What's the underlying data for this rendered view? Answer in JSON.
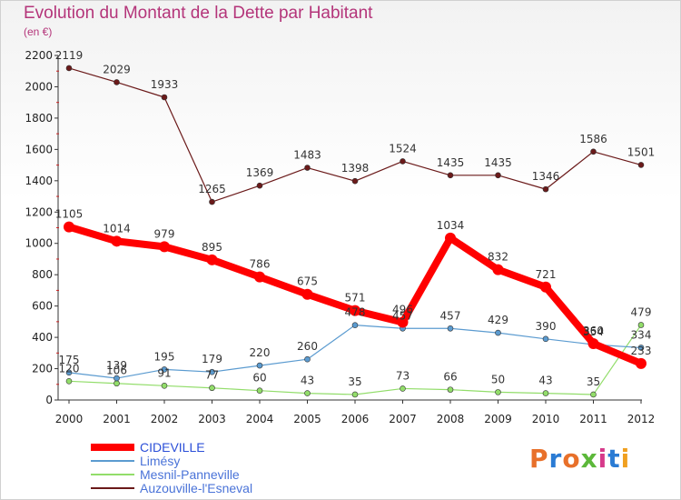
{
  "title": "Evolution du Montant de la Dette par Habitant",
  "subtitle": "(en €)",
  "brand": {
    "text": "Proxiti",
    "colors": [
      "#e8702a",
      "#2a7bd4",
      "#e8702a",
      "#5cb83a",
      "#d63a8a",
      "#2a7bd4",
      "#f0a020"
    ]
  },
  "chart_data": {
    "type": "line",
    "title": "Evolution du Montant de la Dette par Habitant",
    "subtitle": "(en €)",
    "x": [
      2000,
      2001,
      2002,
      2003,
      2004,
      2005,
      2006,
      2007,
      2008,
      2009,
      2010,
      2011,
      2012
    ],
    "ylim": [
      0,
      2200
    ],
    "yticks": [
      0,
      200,
      400,
      600,
      800,
      1000,
      1200,
      1400,
      1600,
      1800,
      2000,
      2200
    ],
    "grid": false,
    "legend": "bottom-left",
    "series": [
      {
        "name": "Auzouville-l'Esneval",
        "color": "#6b1a1a",
        "values": [
          2119,
          2029,
          1933,
          1265,
          1369,
          1483,
          1398,
          1524,
          1435,
          1435,
          1346,
          1586,
          1501
        ]
      },
      {
        "name": "Mesnil-Panneville",
        "color": "#92dd6a",
        "values": [
          120,
          106,
          91,
          77,
          60,
          43,
          35,
          73,
          66,
          50,
          43,
          35,
          479
        ]
      },
      {
        "name": "Limésy",
        "color": "#5b9bd0",
        "values": [
          175,
          139,
          195,
          179,
          220,
          260,
          478,
          457,
          457,
          429,
          390,
          354,
          334
        ]
      },
      {
        "name": "CIDEVILLE",
        "color": "#ff0000",
        "values": [
          1105,
          1014,
          979,
          895,
          786,
          675,
          571,
          496,
          1034,
          832,
          721,
          360,
          233
        ]
      }
    ]
  }
}
